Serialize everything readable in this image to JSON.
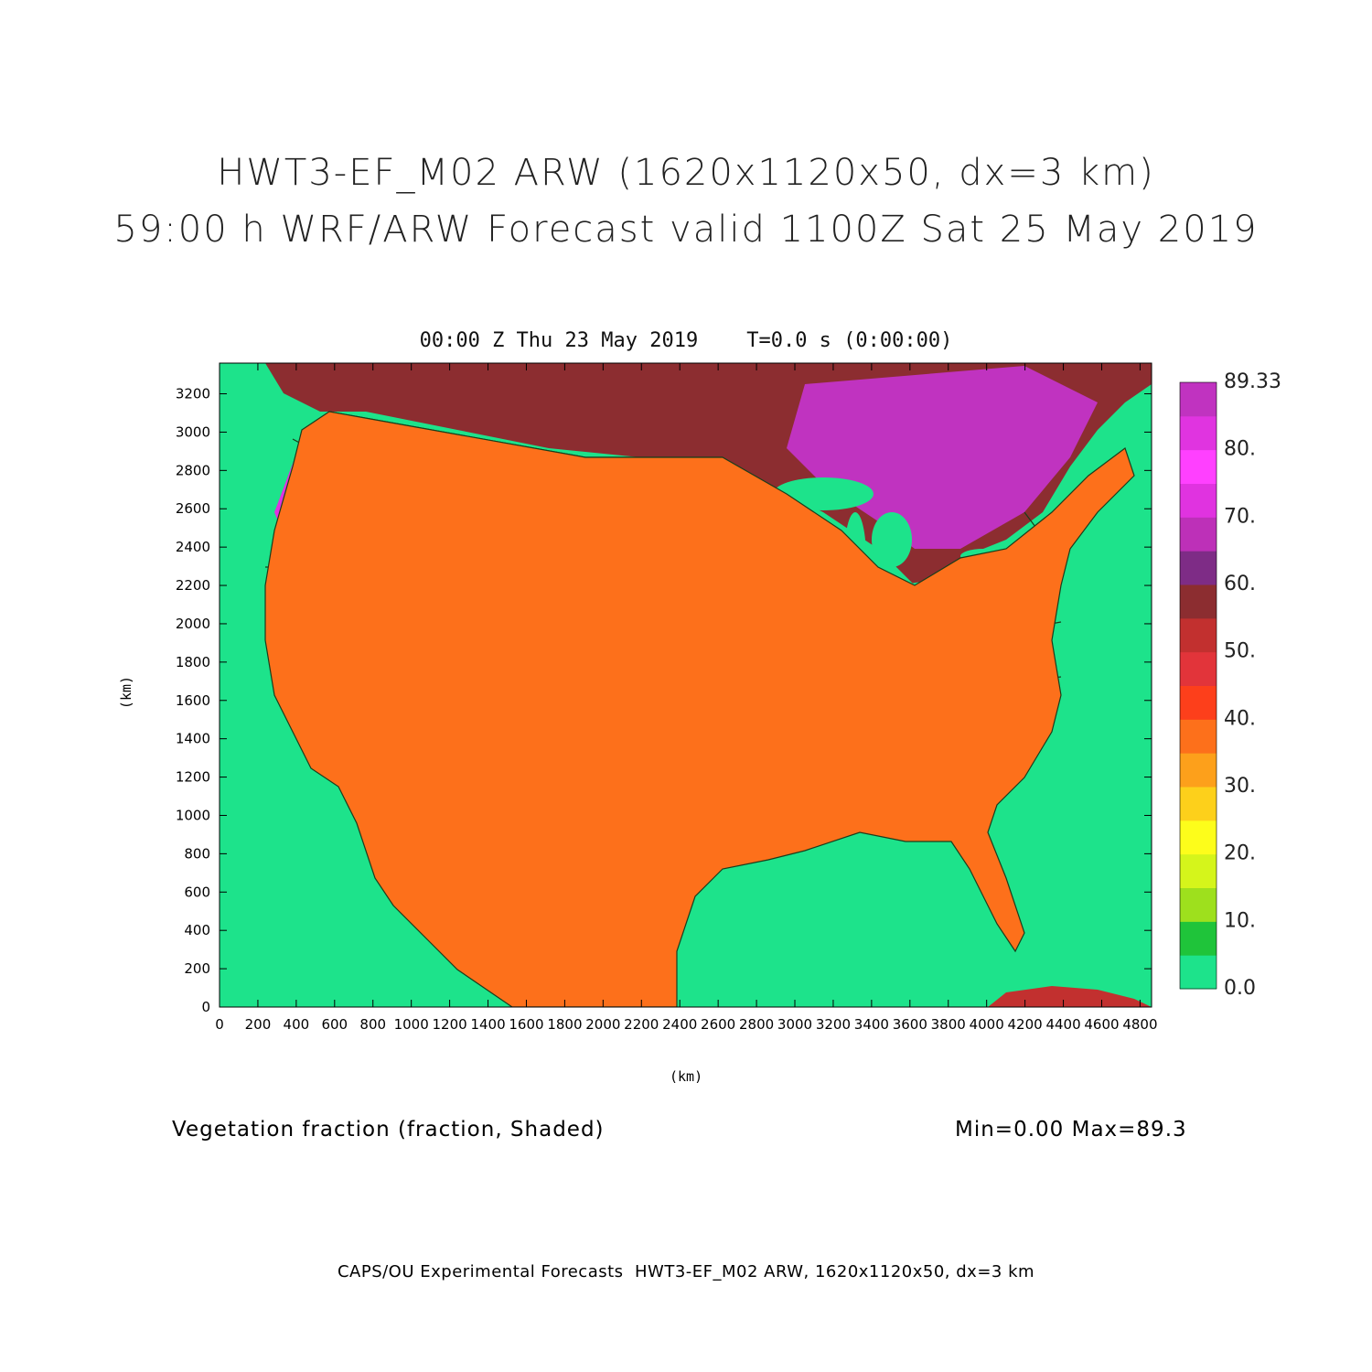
{
  "title_line1": "HWT3-EF_M02 ARW (1620x1120x50, dx=3 km)",
  "title_line2": "59:00 h WRF/ARW Forecast valid 1100Z Sat 25 May 2019",
  "subtitle": "00:00 Z Thu 23 May 2019    T=0.0 s (0:00:00)",
  "axes": {
    "xlabel": "(km)",
    "ylabel": "(km)",
    "x_range": [
      0,
      4860
    ],
    "y_range": [
      0,
      3360
    ],
    "x_ticks": [
      "0",
      "200",
      "400",
      "600",
      "800",
      "1000",
      "1200",
      "1400",
      "1600",
      "1800",
      "2000",
      "2200",
      "2400",
      "2600",
      "2800",
      "3000",
      "3200",
      "3400",
      "3600",
      "3800",
      "4000",
      "4200",
      "4400",
      "4600",
      "4800"
    ],
    "y_ticks": [
      "0",
      "200",
      "400",
      "600",
      "800",
      "1000",
      "1200",
      "1400",
      "1600",
      "1800",
      "2000",
      "2200",
      "2400",
      "2600",
      "2800",
      "3000",
      "3200"
    ]
  },
  "colorbar": {
    "labels": [
      "0.0",
      "10.",
      "20.",
      "30.",
      "40.",
      "50.",
      "60.",
      "70.",
      "80.",
      "89.33"
    ],
    "colors": [
      "#1de38b",
      "#1fc43a",
      "#9ee01d",
      "#d5f51b",
      "#fdfd1b",
      "#fdd01b",
      "#fda01b",
      "#fd701b",
      "#fd3f1b",
      "#e2343a",
      "#c2302f",
      "#8c2d30",
      "#7e2c86",
      "#bd30b8",
      "#e033e0",
      "#ff40ff",
      "#e034e0",
      "#c033c0"
    ]
  },
  "caption_left": "Vegetation fraction (fraction, Shaded)",
  "caption_right": "Min=0.00 Max=89.3",
  "footer": "CAPS/OU Experimental Forecasts  HWT3-EF_M02 ARW, 1620x1120x50, dx=3 km",
  "map": {
    "ocean_color": "#1de38b",
    "land_low_color": "#d5f51b",
    "land_mid_color": "#fd701b",
    "land_high_color": "#e033e0",
    "border_color": "#1b3d1b"
  }
}
